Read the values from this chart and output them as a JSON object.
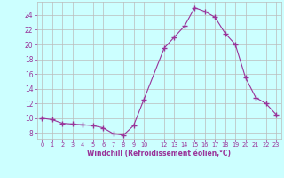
{
  "x": [
    0,
    1,
    2,
    3,
    4,
    5,
    6,
    7,
    8,
    9,
    10,
    12,
    13,
    14,
    15,
    16,
    17,
    18,
    19,
    20,
    21,
    22,
    23
  ],
  "y": [
    10.0,
    9.8,
    9.3,
    9.2,
    9.1,
    9.0,
    8.7,
    7.9,
    7.7,
    9.0,
    12.5,
    19.5,
    21.0,
    22.5,
    25.0,
    24.5,
    23.7,
    21.5,
    20.0,
    15.5,
    12.8,
    12.0,
    10.5
  ],
  "line_color": "#993399",
  "marker": "+",
  "bg_color": "#ccffff",
  "grid_color": "#bbbbbb",
  "ylabel_ticks": [
    8,
    10,
    12,
    14,
    16,
    18,
    20,
    22,
    24
  ],
  "xlim": [
    -0.5,
    23.5
  ],
  "ylim": [
    7.2,
    25.8
  ],
  "xlabel": "Windchill (Refroidissement éolien,°C)",
  "tick_color": "#993399",
  "label_color": "#993399",
  "xtick_positions": [
    0,
    1,
    2,
    3,
    4,
    5,
    6,
    7,
    8,
    9,
    10,
    11,
    12,
    13,
    14,
    15,
    16,
    17,
    18,
    19,
    20,
    21,
    22,
    23
  ],
  "xtick_labels": [
    "0",
    "1",
    "2",
    "3",
    "4",
    "5",
    "6",
    "7",
    "8",
    "9",
    "10",
    "",
    "12",
    "13",
    "14",
    "15",
    "16",
    "17",
    "18",
    "19",
    "20",
    "21",
    "22",
    "23"
  ],
  "figsize": [
    3.2,
    2.0
  ],
  "dpi": 100
}
